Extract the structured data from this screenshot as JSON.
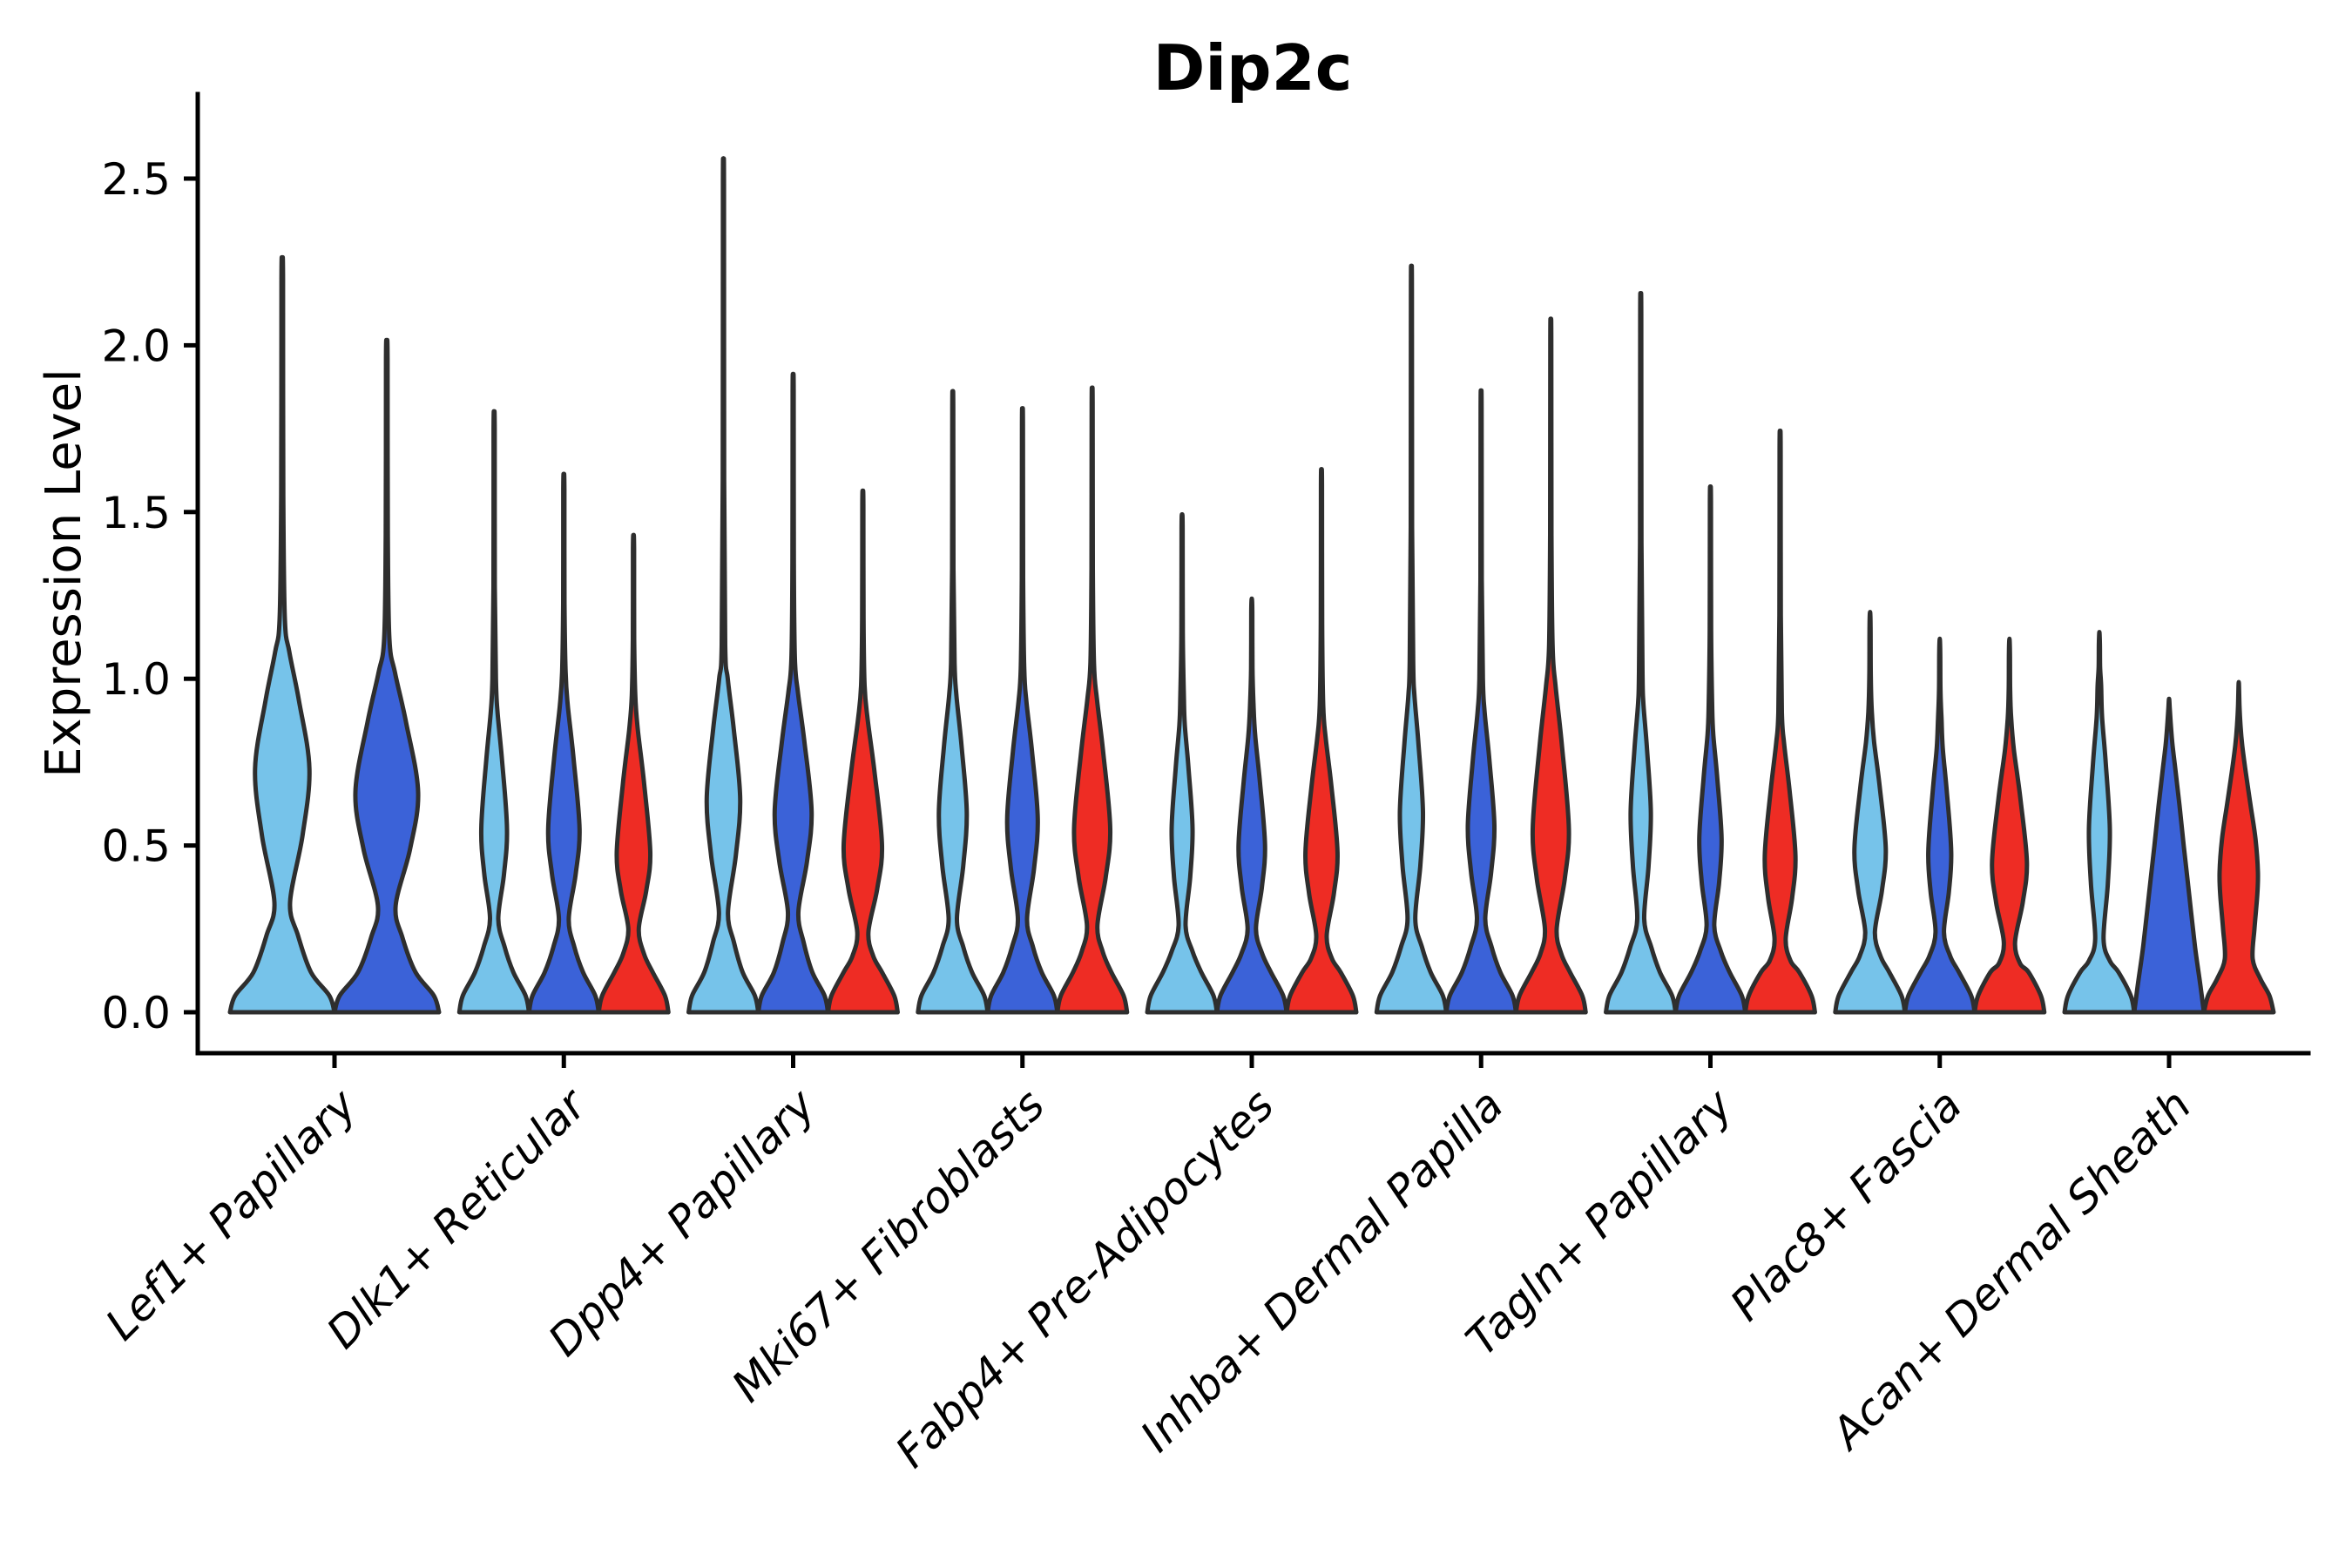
{
  "title": "Dip2c",
  "chart_data": {
    "type": "violin",
    "title": "Dip2c",
    "xlabel": "",
    "ylabel": "Expression Level",
    "ylim": [
      0,
      2.72
    ],
    "grid": false,
    "legend": null,
    "background": "#ffffff",
    "edge_color": "#2E2E2E",
    "yticks": [
      "0.0",
      "0.5",
      "1.0",
      "1.5",
      "2.0",
      "2.5"
    ],
    "ytick_values": [
      0,
      0.5,
      1.0,
      1.5,
      2.0,
      2.5
    ],
    "splits": [
      {
        "name": "light-blue",
        "color": "#76C3EA"
      },
      {
        "name": "dark-blue",
        "color": "#3B62D8"
      },
      {
        "name": "red",
        "color": "#EE2C24"
      }
    ],
    "categories": [
      "Lef1+ Papillary",
      "Dlk1+ Reticular",
      "Dpp4+ Papillary",
      "Mki67+ Fibroblasts",
      "Fabp4+ Pre-Adipocytes",
      "Inhba+ Dermal Papilla",
      "Tagln+ Papillary",
      "Plac8+ Fascia",
      "Acan+ Dermal Sheath"
    ],
    "groups": [
      {
        "category": "Lef1+ Papillary",
        "violins": [
          {
            "split": 0,
            "peak": 2.24,
            "neck": [
              0.33,
              0.15
            ],
            "bulge": [
              0.73,
              0.52
            ],
            "spike_start": 1.18
          },
          {
            "split": 1,
            "peak": 2.0,
            "neck": [
              0.32,
              0.17
            ],
            "bulge": [
              0.66,
              0.6
            ],
            "spike_start": 1.12
          }
        ]
      },
      {
        "category": "Dlk1+ Reticular",
        "violins": [
          {
            "split": 0,
            "peak": 1.79,
            "neck": [
              0.28,
              0.12
            ],
            "bulge": [
              0.55,
              0.37
            ],
            "spike_start": 1.0
          },
          {
            "split": 1,
            "peak": 1.61,
            "neck": [
              0.28,
              0.14
            ],
            "bulge": [
              0.55,
              0.45
            ],
            "spike_start": 1.02
          },
          {
            "split": 2,
            "peak": 1.43,
            "neck": [
              0.25,
              0.15
            ],
            "bulge": [
              0.48,
              0.48
            ],
            "spike_start": 0.95
          }
        ]
      },
      {
        "category": "Dpp4+ Papillary",
        "violins": [
          {
            "split": 0,
            "peak": 2.52,
            "neck": [
              0.3,
              0.13
            ],
            "bulge": [
              0.64,
              0.48
            ],
            "spike_start": 1.1
          },
          {
            "split": 1,
            "peak": 1.9,
            "neck": [
              0.3,
              0.15
            ],
            "bulge": [
              0.6,
              0.53
            ],
            "spike_start": 1.06
          },
          {
            "split": 2,
            "peak": 1.56,
            "neck": [
              0.24,
              0.16
            ],
            "bulge": [
              0.5,
              0.55
            ],
            "spike_start": 0.98
          }
        ]
      },
      {
        "category": "Mki67+ Fibroblasts",
        "violins": [
          {
            "split": 0,
            "peak": 1.85,
            "neck": [
              0.28,
              0.12
            ],
            "bulge": [
              0.6,
              0.4
            ],
            "spike_start": 1.05
          },
          {
            "split": 1,
            "peak": 1.8,
            "neck": [
              0.28,
              0.13
            ],
            "bulge": [
              0.58,
              0.44
            ],
            "spike_start": 1.03
          },
          {
            "split": 2,
            "peak": 1.86,
            "neck": [
              0.26,
              0.15
            ],
            "bulge": [
              0.55,
              0.52
            ],
            "spike_start": 1.05
          }
        ]
      },
      {
        "category": "Fabp4+ Pre-Adipocytes",
        "violins": [
          {
            "split": 0,
            "peak": 1.49,
            "neck": [
              0.26,
              0.1
            ],
            "bulge": [
              0.55,
              0.3
            ],
            "spike_start": 0.95
          },
          {
            "split": 1,
            "peak": 1.24,
            "neck": [
              0.25,
              0.12
            ],
            "bulge": [
              0.5,
              0.38
            ],
            "spike_start": 0.92
          },
          {
            "split": 2,
            "peak": 1.62,
            "neck": [
              0.23,
              0.15
            ],
            "bulge": [
              0.48,
              0.46
            ],
            "spike_start": 0.92
          }
        ]
      },
      {
        "category": "Inhba+ Dermal Papilla",
        "violins": [
          {
            "split": 0,
            "peak": 2.21,
            "neck": [
              0.28,
              0.11
            ],
            "bulge": [
              0.6,
              0.33
            ],
            "spike_start": 1.05
          },
          {
            "split": 1,
            "peak": 1.85,
            "neck": [
              0.28,
              0.12
            ],
            "bulge": [
              0.56,
              0.38
            ],
            "spike_start": 1.0
          },
          {
            "split": 2,
            "peak": 2.06,
            "neck": [
              0.25,
              0.17
            ],
            "bulge": [
              0.55,
              0.52
            ],
            "spike_start": 1.1
          }
        ]
      },
      {
        "category": "Tagln+ Papillary",
        "violins": [
          {
            "split": 0,
            "peak": 2.13,
            "neck": [
              0.28,
              0.1
            ],
            "bulge": [
              0.6,
              0.29
            ],
            "spike_start": 1.02
          },
          {
            "split": 1,
            "peak": 1.57,
            "neck": [
              0.26,
              0.11
            ],
            "bulge": [
              0.52,
              0.32
            ],
            "spike_start": 0.92
          },
          {
            "split": 2,
            "peak": 1.73,
            "neck": [
              0.22,
              0.16
            ],
            "bulge": [
              0.47,
              0.44
            ],
            "spike_start": 0.9
          }
        ]
      },
      {
        "category": "Plac8+ Fascia",
        "violins": [
          {
            "split": 0,
            "peak": 1.2,
            "neck": [
              0.24,
              0.14
            ],
            "bulge": [
              0.49,
              0.45
            ],
            "spike_start": 0.9
          },
          {
            "split": 1,
            "peak": 1.12,
            "neck": [
              0.24,
              0.12
            ],
            "bulge": [
              0.48,
              0.33
            ],
            "spike_start": 0.88
          },
          {
            "split": 2,
            "peak": 1.12,
            "neck": [
              0.21,
              0.16
            ],
            "bulge": [
              0.45,
              0.5
            ],
            "spike_start": 0.88
          }
        ]
      },
      {
        "category": "Acan+ Dermal Sheath",
        "violins": [
          {
            "split": 0,
            "peak": 1.14,
            "neck": [
              0.22,
              0.12
            ],
            "bulge": [
              0.55,
              0.3
            ],
            "spike_start": 0.98
          },
          {
            "split": 1,
            "peak": 0.94,
            "profile": [
              [
                0,
                1
              ],
              [
                0.08,
                0.9
              ],
              [
                0.2,
                0.74
              ],
              [
                0.35,
                0.58
              ],
              [
                0.5,
                0.42
              ],
              [
                0.62,
                0.3
              ],
              [
                0.72,
                0.19
              ],
              [
                0.8,
                0.1
              ],
              [
                0.87,
                0.045
              ],
              [
                0.91,
                0.02
              ],
              [
                0.94,
                0
              ]
            ]
          },
          {
            "split": 2,
            "peak": 0.99,
            "profile": [
              [
                0,
                1
              ],
              [
                0.05,
                0.88
              ],
              [
                0.1,
                0.62
              ],
              [
                0.16,
                0.4
              ],
              [
                0.25,
                0.45
              ],
              [
                0.35,
                0.53
              ],
              [
                0.42,
                0.55
              ],
              [
                0.52,
                0.48
              ],
              [
                0.62,
                0.34
              ],
              [
                0.72,
                0.2
              ],
              [
                0.8,
                0.1
              ],
              [
                0.86,
                0.05
              ],
              [
                0.92,
                0.02
              ],
              [
                0.99,
                0
              ]
            ]
          }
        ]
      }
    ]
  }
}
